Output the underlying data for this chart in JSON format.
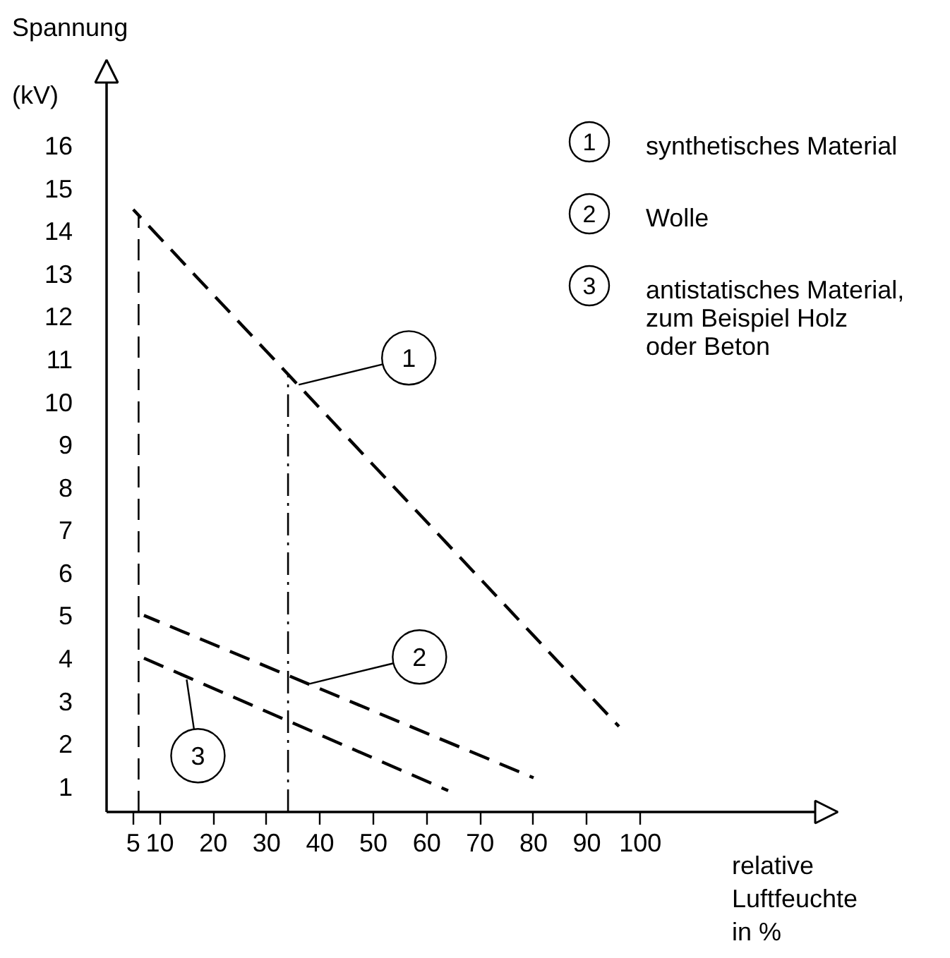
{
  "chart_data": {
    "type": "line",
    "ylabel": "Spannung\n(kV)",
    "xlabel": "relative\nLuftfeuchte\nin %",
    "series": [
      {
        "name": "synthetisches Material",
        "color": "#000000",
        "x": [
          5,
          96
        ],
        "values": [
          14.5,
          2.4
        ]
      },
      {
        "name": "Wolle",
        "color": "#000000",
        "x": [
          7,
          80
        ],
        "values": [
          5.0,
          1.2
        ]
      },
      {
        "name": "antistatisches Material,\nzum Beispiel Holz\noder Beton",
        "color": "#000000",
        "x": [
          7,
          64
        ],
        "values": [
          4.0,
          0.9
        ]
      }
    ],
    "xlim": [
      0,
      137
    ],
    "ylim": [
      0.4,
      18
    ],
    "xticks": [
      5,
      10,
      20,
      30,
      40,
      50,
      60,
      70,
      80,
      90,
      100
    ],
    "yticks": [
      1,
      2,
      3,
      4,
      5,
      6,
      7,
      8,
      9,
      10,
      11,
      12,
      13,
      14,
      15,
      16
    ],
    "line_style": "dashed",
    "legend": "top right",
    "ref_lines": [
      {
        "axis": "x",
        "value": 6,
        "color": "#000000",
        "line_style": "dashed"
      },
      {
        "axis": "x",
        "value": 34,
        "color": "#000000",
        "line_style": "dashdot"
      }
    ],
    "annotations": [
      {
        "text": "1",
        "x": 36,
        "y": 10.4
      },
      {
        "text": "2",
        "x": 38,
        "y": 3.4
      },
      {
        "text": "3",
        "x": 15,
        "y": 3.5
      }
    ]
  }
}
